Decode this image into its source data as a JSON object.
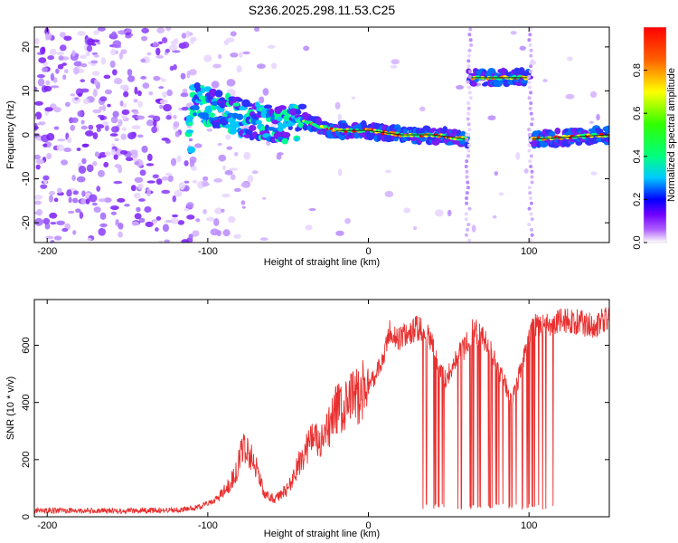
{
  "title": "S236.2025.298.11.53.C25",
  "chart_data": [
    {
      "type": "heatmap",
      "name": "spectrogram",
      "xlabel": "Height of straight line (km)",
      "ylabel": "Frequency (Hz)",
      "xlim": [
        -208,
        150
      ],
      "ylim": [
        -24.5,
        24.5
      ],
      "xticks": [
        -200,
        -100,
        0,
        100
      ],
      "yticks": [
        -20,
        -10,
        0,
        10,
        20
      ],
      "colorbar": {
        "label": "Normalized spectral amplitude",
        "range": [
          0,
          1
        ],
        "ticks": [
          0.0,
          0.2,
          0.4,
          0.6,
          0.8
        ]
      },
      "ridge": [
        {
          "x": -110,
          "f": 8
        },
        {
          "x": -90,
          "f": 5
        },
        {
          "x": -70,
          "f": 3
        },
        {
          "x": -50,
          "f": 2
        },
        {
          "x": -40,
          "f": 3
        },
        {
          "x": -20,
          "f": 1
        },
        {
          "x": 0,
          "f": 1
        },
        {
          "x": 20,
          "f": 0
        },
        {
          "x": 40,
          "f": 0
        },
        {
          "x": 62,
          "f": -1
        },
        {
          "x": 63,
          "f": 13
        },
        {
          "x": 100,
          "f": 13
        },
        {
          "x": 101,
          "f": -1
        },
        {
          "x": 150,
          "f": 0
        }
      ]
    },
    {
      "type": "line",
      "name": "snr",
      "xlabel": "Height of straight line (km)",
      "ylabel": "SNR (10 * v/v)",
      "xlim": [
        -208,
        150
      ],
      "ylim": [
        0,
        760
      ],
      "xticks": [
        -200,
        -100,
        0,
        100
      ],
      "yticks": [
        0,
        200,
        400,
        600
      ],
      "color": "#e8302f",
      "x": [
        -208,
        -190,
        -170,
        -150,
        -130,
        -115,
        -105,
        -95,
        -88,
        -82,
        -78,
        -75,
        -70,
        -65,
        -58,
        -50,
        -42,
        -35,
        -30,
        -25,
        -20,
        -15,
        -10,
        -5,
        0,
        5,
        10,
        13,
        18,
        25,
        30,
        35,
        40,
        45,
        48,
        52,
        55,
        60,
        65,
        70,
        75,
        80,
        85,
        88,
        92,
        95,
        100,
        105,
        110,
        115,
        120,
        130,
        140,
        150
      ],
      "values": [
        20,
        22,
        20,
        21,
        22,
        25,
        35,
        60,
        100,
        160,
        250,
        230,
        180,
        80,
        60,
        100,
        200,
        280,
        250,
        300,
        380,
        370,
        420,
        430,
        460,
        500,
        560,
        650,
        620,
        640,
        660,
        650,
        600,
        500,
        480,
        520,
        560,
        590,
        650,
        640,
        600,
        520,
        470,
        400,
        450,
        520,
        640,
        670,
        660,
        680,
        690,
        680,
        670,
        690
      ],
      "dropouts": [
        [
          33,
          37
        ],
        [
          40,
          48
        ],
        [
          53,
          58
        ],
        [
          63,
          66
        ],
        [
          68,
          72
        ],
        [
          74,
          78
        ],
        [
          79,
          84
        ],
        [
          86,
          90
        ],
        [
          92,
          96
        ],
        [
          98,
          104
        ],
        [
          106,
          112
        ],
        [
          113,
          118
        ]
      ]
    }
  ]
}
